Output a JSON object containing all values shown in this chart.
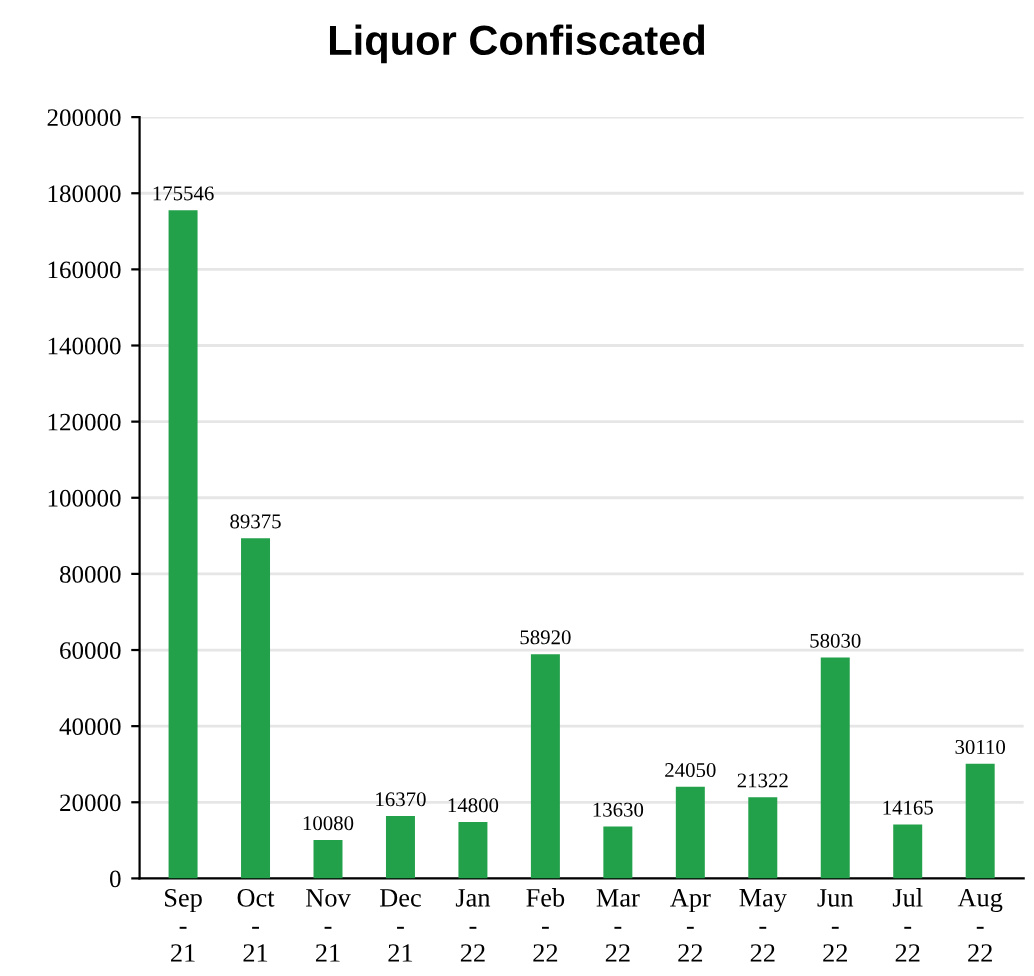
{
  "chart_data": {
    "type": "bar",
    "title": "Liquor Confiscated",
    "categories": [
      "Sep\n-\n21",
      "Oct\n-\n21",
      "Nov\n-\n21",
      "Dec\n-\n21",
      "Jan\n-\n22",
      "Feb\n-\n22",
      "Mar\n-\n22",
      "Apr\n-\n22",
      "May\n-\n22",
      "Jun\n-\n22",
      "Jul\n-\n22",
      "Aug\n-\n22"
    ],
    "values": [
      175546,
      89375,
      10080,
      16370,
      14800,
      58920,
      13630,
      24050,
      21322,
      58030,
      14165,
      30110
    ],
    "color": "#22a04a",
    "ylim": [
      0,
      200000
    ],
    "yticks": [
      0,
      20000,
      40000,
      60000,
      80000,
      100000,
      120000,
      140000,
      160000,
      180000,
      200000
    ],
    "grid": "y",
    "data_labels": true
  }
}
